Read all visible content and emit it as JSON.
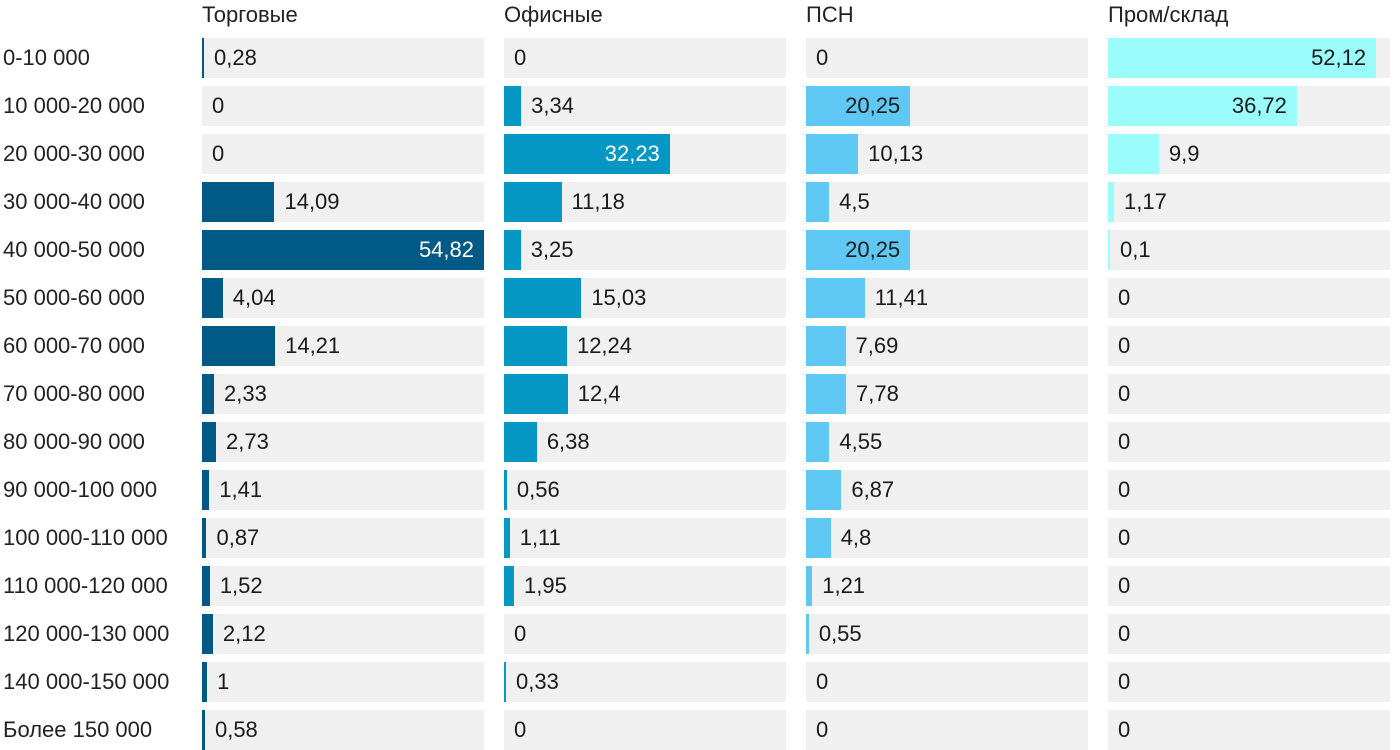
{
  "chart_data": {
    "type": "bar",
    "orientation": "horizontal",
    "layout": "small-multiples",
    "categories": [
      "0-10 000",
      "10 000-20 000",
      "20 000-30 000",
      "30 000-40 000",
      "40 000-50 000",
      "50 000-60 000",
      "60 000-70 000",
      "70 000-80 000",
      "80 000-90 000",
      "90 000-100 000",
      "100 000-110 000",
      "110 000-120 000",
      "120 000-130 000",
      "140 000-150 000",
      "Более 150 000"
    ],
    "series": [
      {
        "name": "Торговые",
        "color": "#015a85",
        "labels": [
          "0,28",
          "0",
          "0",
          "14,09",
          "54,82",
          "4,04",
          "14,21",
          "2,33",
          "2,73",
          "1,41",
          "0,87",
          "1,52",
          "2,12",
          "1",
          "0,58"
        ],
        "values": [
          0.28,
          0,
          0,
          14.09,
          54.82,
          4.04,
          14.21,
          2.33,
          2.73,
          1.41,
          0.87,
          1.52,
          2.12,
          1,
          0.58
        ]
      },
      {
        "name": "Офисные",
        "color": "#0797c4",
        "labels": [
          "0",
          "3,34",
          "32,23",
          "11,18",
          "3,25",
          "15,03",
          "12,24",
          "12,4",
          "6,38",
          "0,56",
          "1,11",
          "1,95",
          "0",
          "0,33",
          "0"
        ],
        "values": [
          0,
          3.34,
          32.23,
          11.18,
          3.25,
          15.03,
          12.24,
          12.4,
          6.38,
          0.56,
          1.11,
          1.95,
          0,
          0.33,
          0
        ]
      },
      {
        "name": "ПСН",
        "color": "#5ec7f4",
        "labels": [
          "0",
          "20,25",
          "10,13",
          "4,5",
          "20,25",
          "11,41",
          "7,69",
          "7,78",
          "4,55",
          "6,87",
          "4,8",
          "1,21",
          "0,55",
          "0",
          "0"
        ],
        "values": [
          0,
          20.25,
          10.13,
          4.5,
          20.25,
          11.41,
          7.69,
          7.78,
          4.55,
          6.87,
          4.8,
          1.21,
          0.55,
          0,
          0
        ]
      },
      {
        "name": "Пром/склад",
        "color": "#9bfcfc",
        "labels": [
          "52,12",
          "36,72",
          "9,9",
          "1,17",
          "0,1",
          "0",
          "0",
          "0",
          "0",
          "0",
          "0",
          "0",
          "0",
          "0",
          "0"
        ],
        "values": [
          52.12,
          36.72,
          9.9,
          1.17,
          0.1,
          0,
          0,
          0,
          0,
          0,
          0,
          0,
          0,
          0,
          0
        ]
      }
    ],
    "xlim": [
      0,
      54.82
    ],
    "value_labels": true,
    "grid": false,
    "legend": "none"
  }
}
